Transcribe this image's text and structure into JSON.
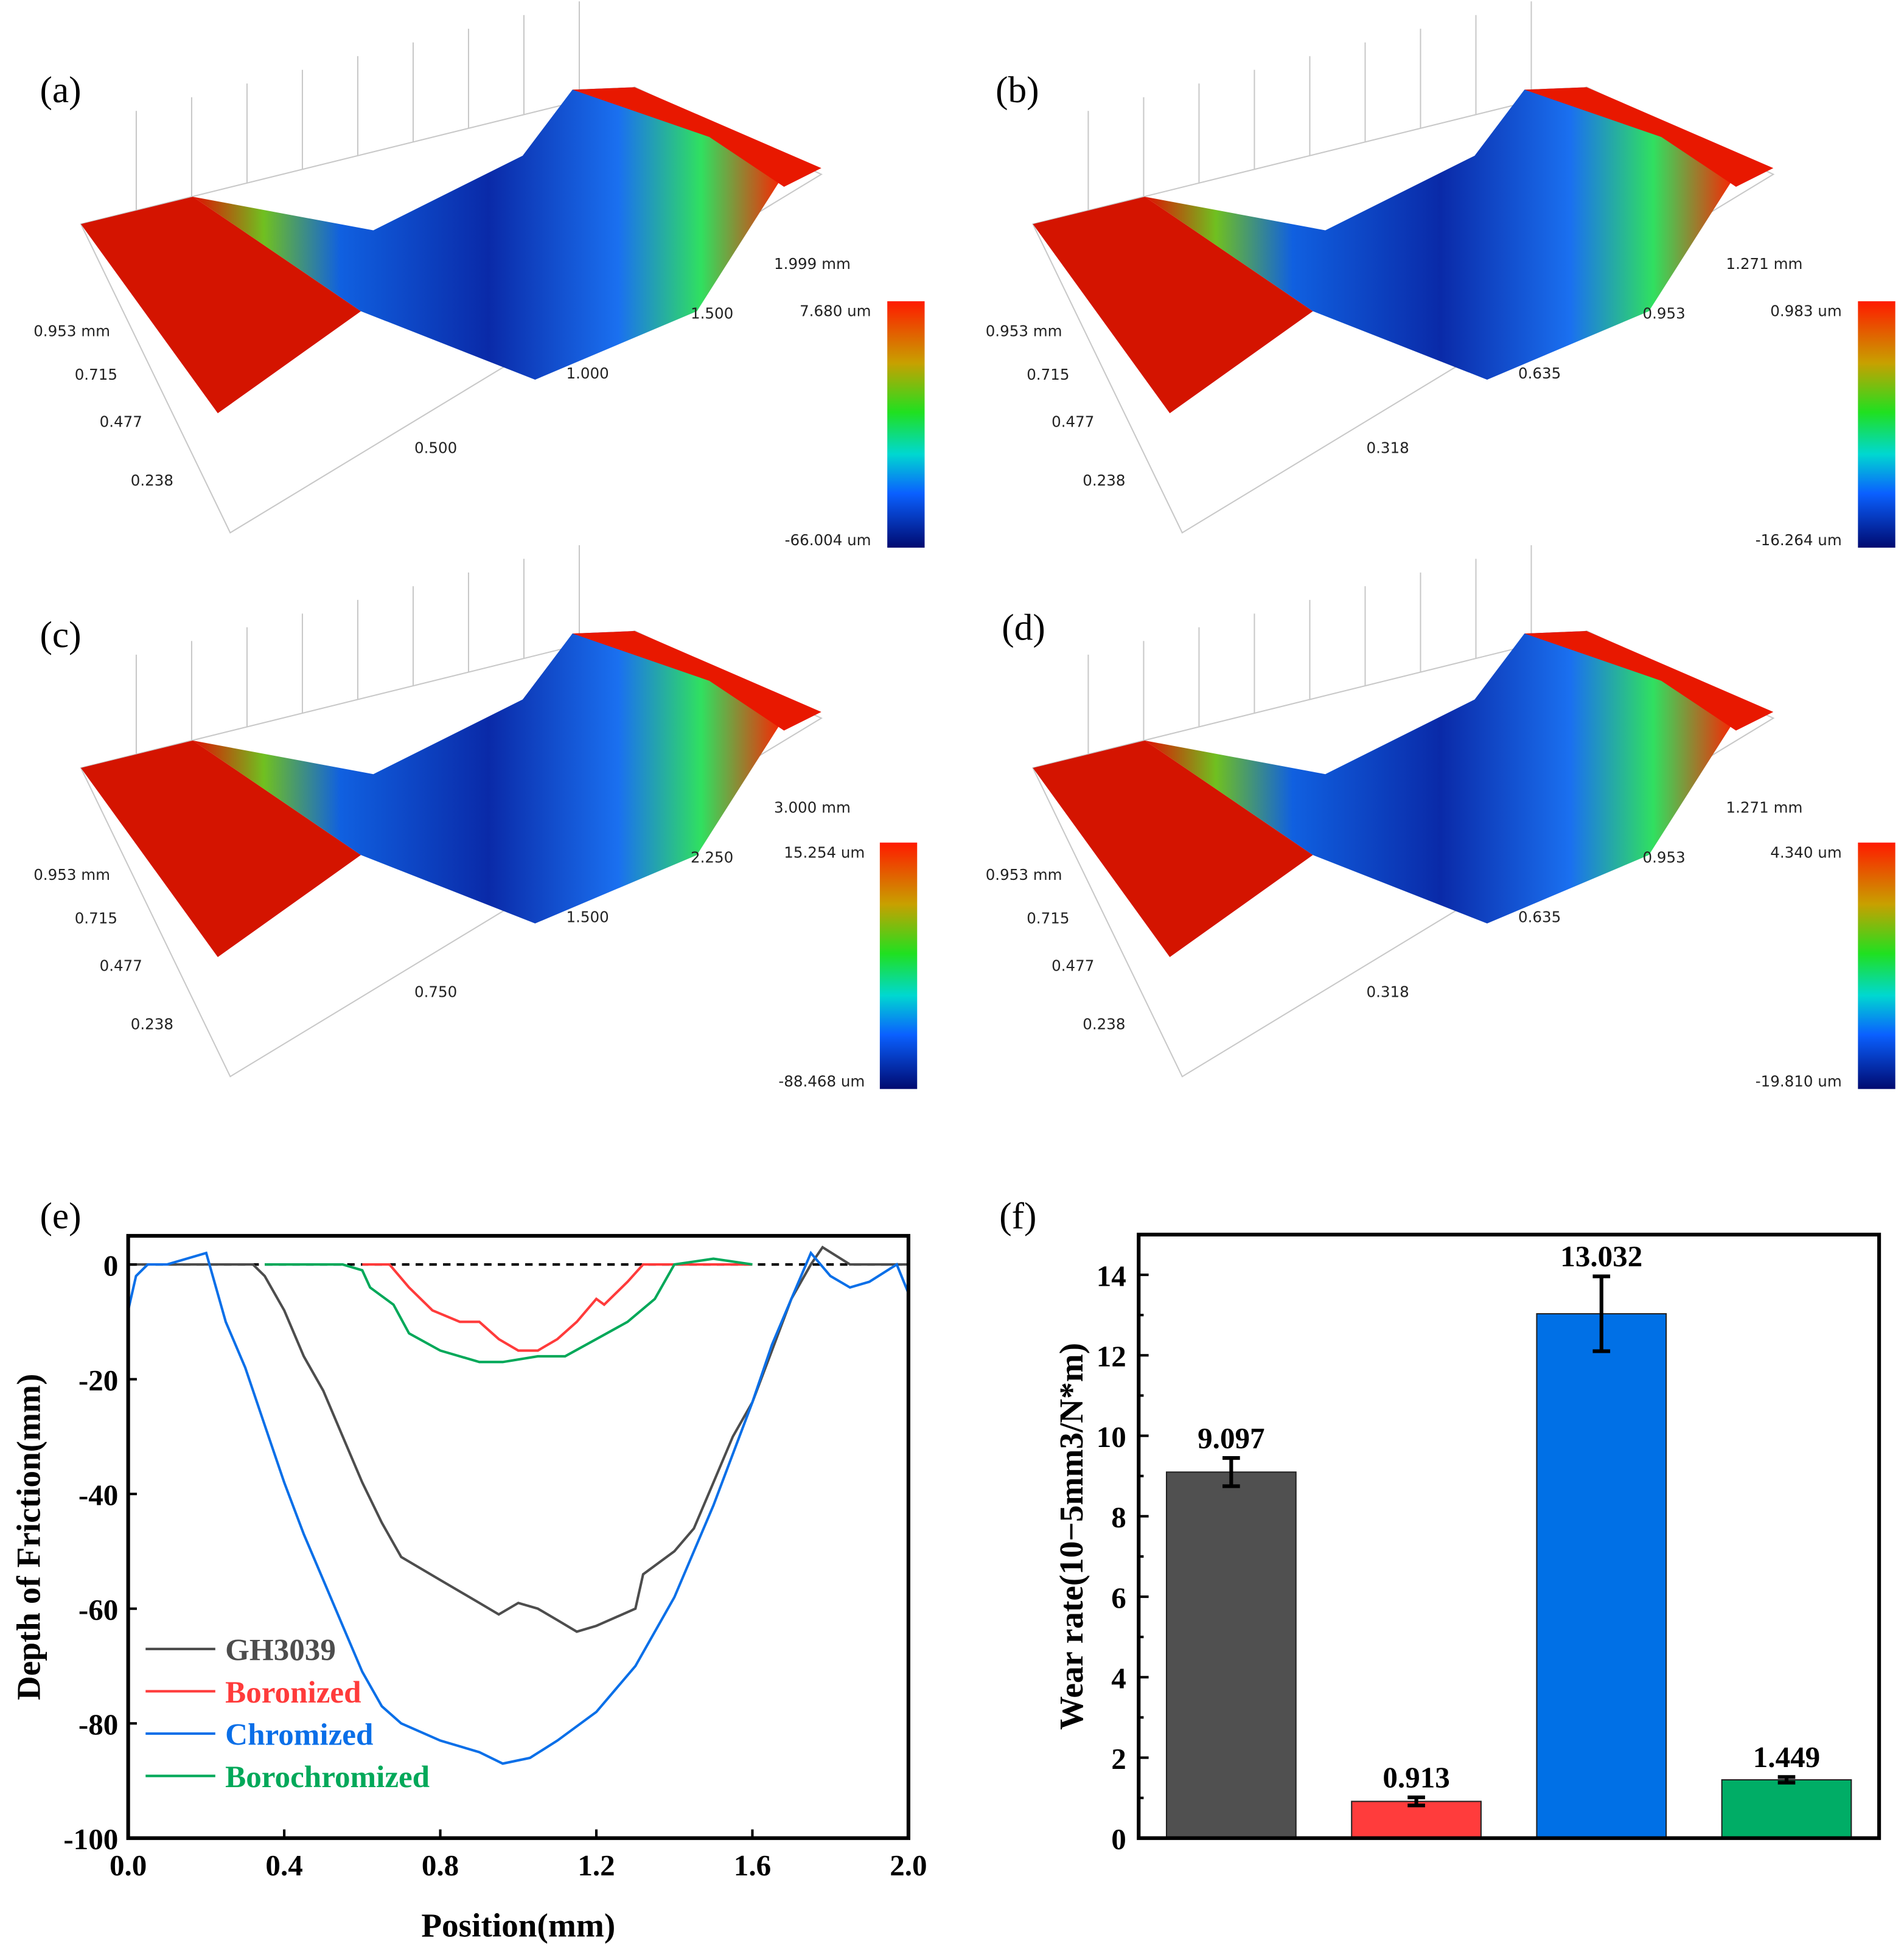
{
  "panels_3d": [
    {
      "label": "(a)",
      "y_ticks": [
        "0.953 mm",
        "0.715",
        "0.477",
        "0.238"
      ],
      "x_ticks": [
        "0.500",
        "1.000",
        "1.500",
        "1.999 mm"
      ],
      "color_max": "7.680 um",
      "color_min": "-66.004 um"
    },
    {
      "label": "(b)",
      "y_ticks": [
        "0.953 mm",
        "0.715",
        "0.477",
        "0.238"
      ],
      "x_ticks": [
        "0.318",
        "0.635",
        "0.953",
        "1.271 mm"
      ],
      "color_max": "0.983 um",
      "color_min": "-16.264 um"
    },
    {
      "label": "(c)",
      "y_ticks": [
        "0.953 mm",
        "0.715",
        "0.477",
        "0.238"
      ],
      "x_ticks": [
        "0.750",
        "1.500",
        "2.250",
        "3.000 mm"
      ],
      "color_max": "15.254 um",
      "color_min": "-88.468 um"
    },
    {
      "label": "(d)",
      "y_ticks": [
        "0.953 mm",
        "0.715",
        "0.477",
        "0.238"
      ],
      "x_ticks": [
        "0.318",
        "0.635",
        "0.953",
        "1.271 mm"
      ],
      "color_max": "4.340 um",
      "color_min": "-19.810 um"
    }
  ],
  "chart_data": [
    {
      "label": "(e)",
      "type": "line",
      "xlabel": "Position(mm)",
      "ylabel": "Depth of Friction(mm)",
      "xlim": [
        0,
        2
      ],
      "ylim": [
        -100,
        5
      ],
      "xticks": [
        "0.0",
        "0.4",
        "0.8",
        "1.2",
        "1.6",
        "2.0"
      ],
      "xtick_values": [
        0,
        0.4,
        0.8,
        1.2,
        1.6,
        2.0
      ],
      "yticks": [
        "0",
        "-20",
        "-40",
        "-60",
        "-80",
        "-100"
      ],
      "ytick_values": [
        0,
        -20,
        -40,
        -60,
        -80,
        -100
      ],
      "reference_line": 0,
      "legend_position": "bottom-left",
      "series": [
        {
          "name": "GH3039",
          "color": "#4d4d4d",
          "x": [
            0,
            0.32,
            0.35,
            0.4,
            0.45,
            0.5,
            0.55,
            0.6,
            0.65,
            0.7,
            0.8,
            0.9,
            0.95,
            1.0,
            1.05,
            1.1,
            1.15,
            1.2,
            1.3,
            1.32,
            1.4,
            1.45,
            1.5,
            1.55,
            1.6,
            1.65,
            1.7,
            1.75,
            1.78,
            1.85,
            2.0
          ],
          "y": [
            0,
            0,
            -2,
            -8,
            -16,
            -22,
            -30,
            -38,
            -45,
            -51,
            -55,
            -59,
            -61,
            -59,
            -60,
            -62,
            -64,
            -63,
            -60,
            -54,
            -50,
            -46,
            -38,
            -30,
            -24,
            -15,
            -6,
            0,
            3,
            0,
            0
          ]
        },
        {
          "name": "Boronized",
          "color": "#ff3b3b",
          "x": [
            0.6,
            0.67,
            0.72,
            0.78,
            0.85,
            0.9,
            0.95,
            1.0,
            1.05,
            1.1,
            1.15,
            1.2,
            1.22,
            1.28,
            1.32,
            1.6
          ],
          "y": [
            0,
            0,
            -4,
            -8,
            -10,
            -10,
            -13,
            -15,
            -15,
            -13,
            -10,
            -6,
            -7,
            -3,
            0,
            0
          ]
        },
        {
          "name": "Chromized",
          "color": "#0a6fe8",
          "x": [
            0,
            0.02,
            0.05,
            0.1,
            0.2,
            0.25,
            0.3,
            0.35,
            0.4,
            0.45,
            0.5,
            0.55,
            0.6,
            0.65,
            0.7,
            0.8,
            0.9,
            0.96,
            1.03,
            1.1,
            1.2,
            1.3,
            1.4,
            1.5,
            1.6,
            1.65,
            1.7,
            1.75,
            1.8,
            1.85,
            1.9,
            1.97,
            2.0
          ],
          "y": [
            -8,
            -2,
            0,
            0,
            2,
            -10,
            -18,
            -28,
            -38,
            -47,
            -55,
            -63,
            -71,
            -77,
            -80,
            -83,
            -85,
            -87,
            -86,
            -83,
            -78,
            -70,
            -58,
            -42,
            -24,
            -14,
            -6,
            2,
            -2,
            -4,
            -3,
            0,
            -5
          ]
        },
        {
          "name": "Borochromized",
          "color": "#00a859",
          "x": [
            0.35,
            0.55,
            0.6,
            0.62,
            0.68,
            0.72,
            0.8,
            0.9,
            0.96,
            1.05,
            1.12,
            1.2,
            1.28,
            1.35,
            1.4,
            1.5,
            1.6
          ],
          "y": [
            0,
            0,
            -1,
            -4,
            -7,
            -12,
            -15,
            -17,
            -17,
            -16,
            -16,
            -13,
            -10,
            -6,
            0,
            1,
            0
          ]
        }
      ]
    },
    {
      "label": "(f)",
      "type": "bar",
      "ylabel": "Wear rate(10−5mm3/N*m)",
      "ylim": [
        0,
        15
      ],
      "yticks": [
        "0",
        "2",
        "4",
        "6",
        "8",
        "10",
        "12",
        "14"
      ],
      "ytick_values": [
        0,
        2,
        4,
        6,
        8,
        10,
        12,
        14
      ],
      "categories": [
        "GH3039",
        "Boronized",
        "Chromized",
        "Borochromized"
      ],
      "values": [
        9.097,
        0.913,
        13.032,
        1.449
      ],
      "value_labels": [
        "9.097",
        "0.913",
        "13.032",
        "1.449"
      ],
      "errors": [
        0.35,
        0.1,
        0.93,
        0.07
      ],
      "colors": [
        "#505050",
        "#ff3c3c",
        "#0070e6",
        "#00ad66"
      ]
    }
  ]
}
